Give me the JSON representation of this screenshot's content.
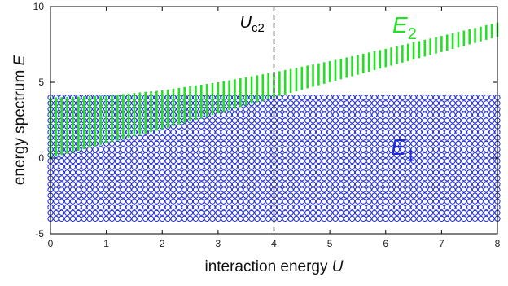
{
  "chart_data": {
    "type": "scatter",
    "xlabel": "interaction energy",
    "xlabel_symbol": "U",
    "ylabel": "energy spectrum",
    "ylabel_symbol": "E",
    "xlim": [
      0,
      8
    ],
    "ylim": [
      -5,
      10
    ],
    "x_ticks": [
      "0",
      "1",
      "2",
      "3",
      "4",
      "5",
      "6",
      "7",
      "8"
    ],
    "y_ticks": [
      "-5",
      "0",
      "5",
      "10"
    ],
    "grid": false,
    "U_points": {
      "start": 0,
      "stop": 8,
      "count": 81
    },
    "series": [
      {
        "label_base": "E",
        "label_sub": "1",
        "color": "#1f2bd9",
        "marker": "circle",
        "band_per_U": {
          "min": -4.0,
          "max": 4.0
        }
      },
      {
        "label_base": "E",
        "label_sub": "2",
        "color": "#22e022",
        "marker": "vertical-segment",
        "band_per_U": {
          "U": [
            0,
            1,
            2,
            3,
            4,
            5,
            6,
            7,
            8
          ],
          "min": [
            0.0,
            0.97,
            1.9,
            2.95,
            4.0,
            5.0,
            6.0,
            7.0,
            8.0
          ],
          "max": [
            4.0,
            4.12,
            4.47,
            5.0,
            5.66,
            6.4,
            7.21,
            8.06,
            8.94
          ]
        }
      }
    ],
    "annotations": [
      {
        "type": "vline",
        "x": 4,
        "style": "dashed",
        "label_base": "U",
        "label_sub": "c2"
      }
    ]
  }
}
